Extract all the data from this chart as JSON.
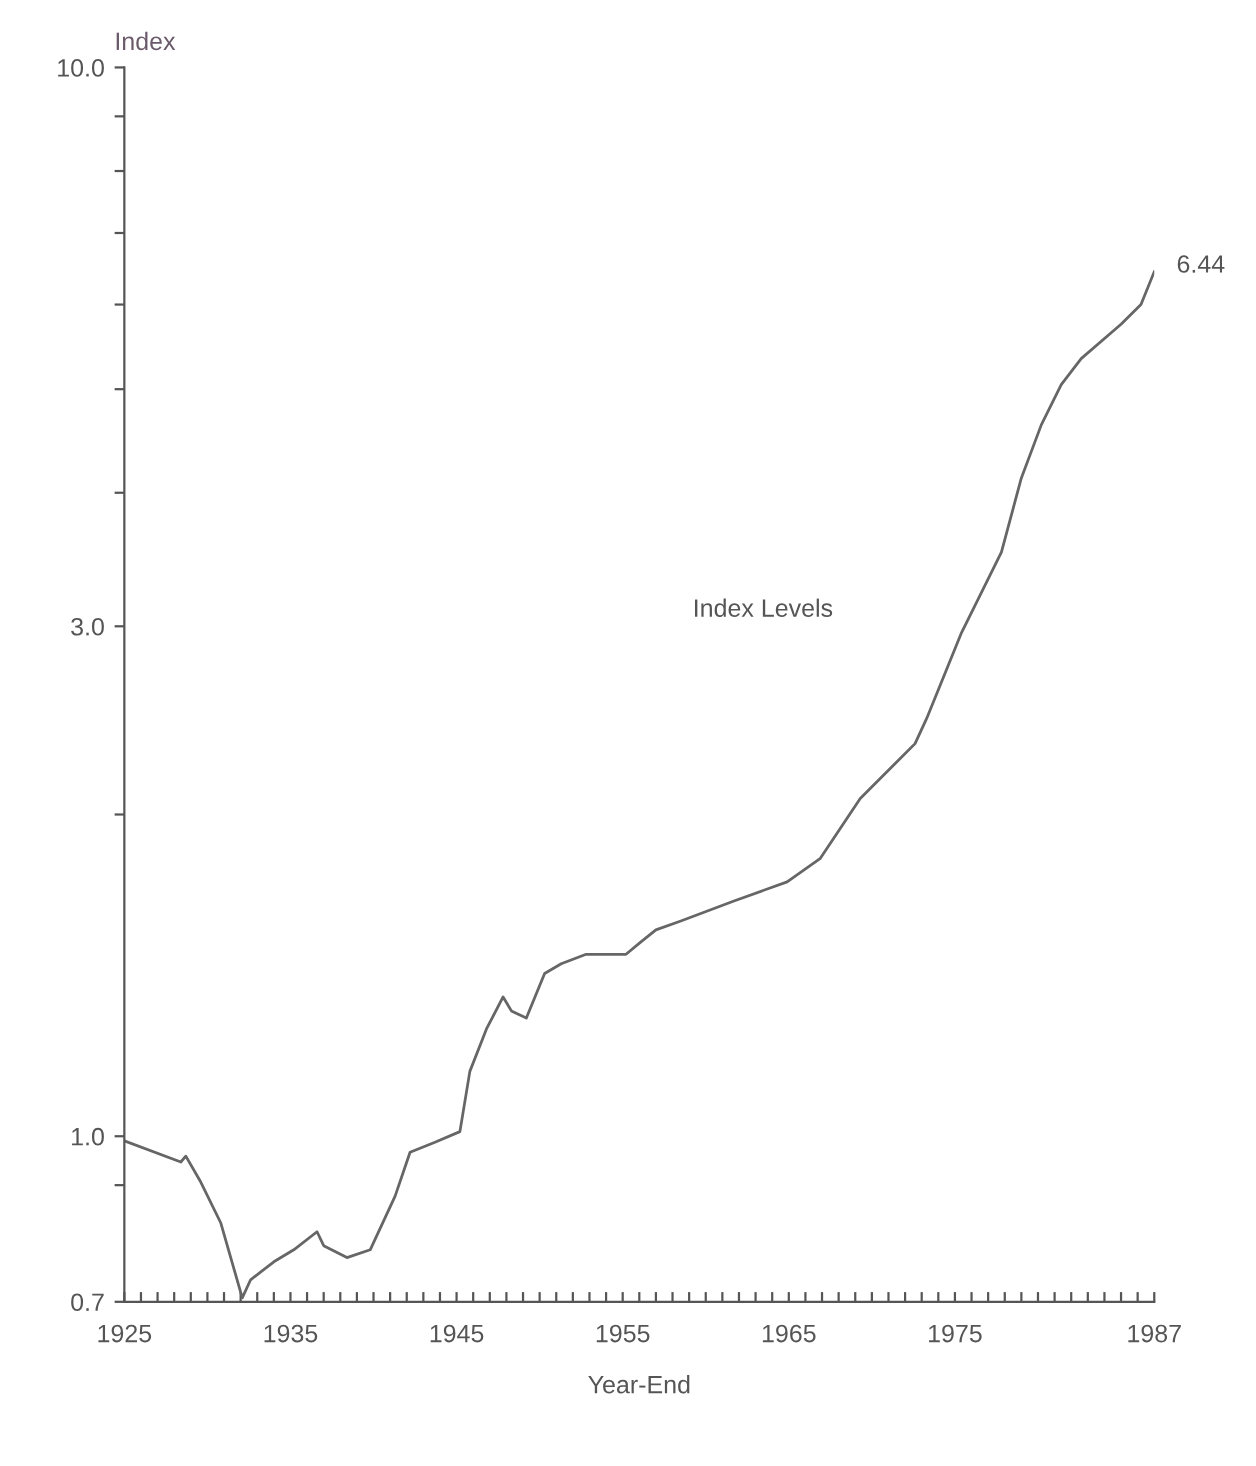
{
  "chart_data": {
    "type": "line",
    "xlabel": "Year-End",
    "ylabel": "Index",
    "log": "y",
    "x": [
      1925,
      1928.4,
      1928.7,
      1929.6,
      1930.8,
      1932.1,
      1932.6,
      1934,
      1935.2,
      1936.6,
      1937,
      1938.4,
      1939.8,
      1941.3,
      1942.2,
      1943.7,
      1945.2,
      1945.8,
      1946.8,
      1947.8,
      1948.3,
      1949.2,
      1950.3,
      1951.3,
      1952.8,
      1955.2,
      1956.1,
      1957,
      1958.5,
      1961.7,
      1964.9,
      1966.9,
      1969.3,
      1972.6,
      1973.3,
      1975.4,
      1977.8,
      1979,
      1980.2,
      1981.4,
      1982.6,
      1985,
      1986.2,
      1987
    ],
    "series": [
      {
        "name": "Index Levels",
        "color": "#666666",
        "values": [
          0.99,
          0.946,
          0.958,
          0.906,
          0.83,
          0.706,
          0.734,
          0.763,
          0.783,
          0.814,
          0.79,
          0.77,
          0.783,
          0.879,
          0.966,
          0.987,
          1.01,
          1.15,
          1.26,
          1.35,
          1.31,
          1.29,
          1.42,
          1.45,
          1.48,
          1.48,
          1.52,
          1.56,
          1.59,
          1.66,
          1.73,
          1.82,
          2.07,
          2.33,
          2.46,
          2.96,
          3.52,
          4.13,
          4.63,
          5.05,
          5.34,
          5.75,
          6.0,
          6.44
        ],
        "value_labels": [
          null,
          null,
          null,
          null,
          null,
          null,
          null,
          null,
          null,
          null,
          null,
          null,
          null,
          null,
          null,
          null,
          null,
          null,
          null,
          null,
          null,
          null,
          null,
          null,
          null,
          null,
          null,
          null,
          null,
          null,
          null,
          null,
          null,
          null,
          null,
          null,
          null,
          null,
          null,
          null,
          null,
          null,
          null,
          "6.44"
        ]
      }
    ],
    "xlim": [
      1925,
      1987
    ],
    "ylim": [
      0.7,
      10
    ],
    "xticks": [
      1925,
      {
        "value": 1926,
        "label": null
      },
      {
        "value": 1927,
        "label": null
      },
      {
        "value": 1928,
        "label": null
      },
      {
        "value": 1929,
        "label": null
      },
      {
        "value": 1930,
        "label": null
      },
      {
        "value": 1931,
        "label": null
      },
      {
        "value": 1932,
        "label": null
      },
      {
        "value": 1933,
        "label": null
      },
      {
        "value": 1934,
        "label": null
      },
      1935,
      {
        "value": 1936,
        "label": null
      },
      {
        "value": 1937,
        "label": null
      },
      {
        "value": 1938,
        "label": null
      },
      {
        "value": 1939,
        "label": null
      },
      {
        "value": 1940,
        "label": null
      },
      {
        "value": 1941,
        "label": null
      },
      {
        "value": 1942,
        "label": null
      },
      {
        "value": 1943,
        "label": null
      },
      {
        "value": 1944,
        "label": null
      },
      1945,
      {
        "value": 1946,
        "label": null
      },
      {
        "value": 1947,
        "label": null
      },
      {
        "value": 1948,
        "label": null
      },
      {
        "value": 1949,
        "label": null
      },
      {
        "value": 1950,
        "label": null
      },
      {
        "value": 1951,
        "label": null
      },
      {
        "value": 1952,
        "label": null
      },
      {
        "value": 1953,
        "label": null
      },
      {
        "value": 1954,
        "label": null
      },
      1955,
      {
        "value": 1956,
        "label": null
      },
      {
        "value": 1957,
        "label": null
      },
      {
        "value": 1958,
        "label": null
      },
      {
        "value": 1959,
        "label": null
      },
      {
        "value": 1960,
        "label": null
      },
      {
        "value": 1961,
        "label": null
      },
      {
        "value": 1962,
        "label": null
      },
      {
        "value": 1963,
        "label": null
      },
      {
        "value": 1964,
        "label": null
      },
      1965,
      {
        "value": 1966,
        "label": null
      },
      {
        "value": 1967,
        "label": null
      },
      {
        "value": 1968,
        "label": null
      },
      {
        "value": 1969,
        "label": null
      },
      {
        "value": 1970,
        "label": null
      },
      {
        "value": 1971,
        "label": null
      },
      {
        "value": 1972,
        "label": null
      },
      {
        "value": 1973,
        "label": null
      },
      {
        "value": 1974,
        "label": null
      },
      1975,
      {
        "value": 1976,
        "label": null
      },
      {
        "value": 1977,
        "label": null
      },
      {
        "value": 1978,
        "label": null
      },
      {
        "value": 1979,
        "label": null
      },
      {
        "value": 1980,
        "label": null
      },
      {
        "value": 1981,
        "label": null
      },
      {
        "value": 1982,
        "label": null
      },
      {
        "value": 1983,
        "label": null
      },
      {
        "value": 1984,
        "label": null
      },
      {
        "value": 1985,
        "label": null
      },
      {
        "value": 1986,
        "label": null
      },
      1987
    ],
    "yticks": [
      {
        "value": 0.7,
        "label": "0.7"
      },
      {
        "value": 0.9,
        "label": null
      },
      {
        "value": 1,
        "label": "1.0"
      },
      {
        "value": 2,
        "label": null
      },
      {
        "value": 3,
        "label": "3.0"
      },
      {
        "value": 4,
        "label": null
      },
      {
        "value": 5,
        "label": null
      },
      {
        "value": 6,
        "label": null
      },
      {
        "value": 7,
        "label": null
      },
      {
        "value": 8,
        "label": null
      },
      {
        "value": 9,
        "label": null
      },
      {
        "value": 10,
        "label": "10.0"
      }
    ],
    "grid": false,
    "legend": false,
    "marker": "none",
    "line_style": "solid"
  }
}
